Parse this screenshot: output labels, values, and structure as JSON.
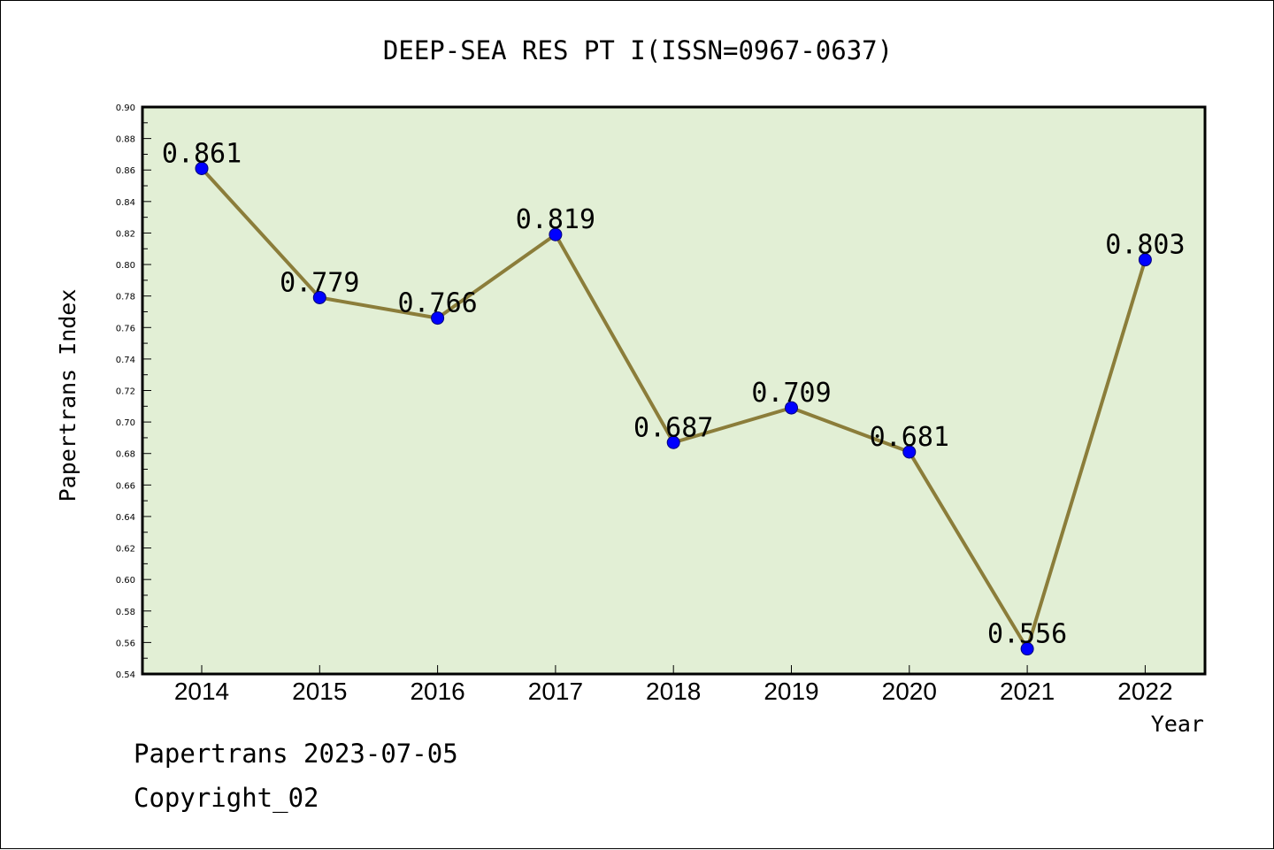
{
  "chart_data": {
    "type": "line",
    "title": "DEEP-SEA RES PT I(ISSN=0967-0637)",
    "xlabel": "Year",
    "ylabel": "Papertrans Index",
    "categories": [
      "2014",
      "2015",
      "2016",
      "2017",
      "2018",
      "2019",
      "2020",
      "2021",
      "2022"
    ],
    "values": [
      0.861,
      0.779,
      0.766,
      0.819,
      0.687,
      0.709,
      0.681,
      0.556,
      0.803
    ],
    "data_labels": [
      "0.861",
      "0.779",
      "0.766",
      "0.819",
      "0.687",
      "0.709",
      "0.681",
      "0.556",
      "0.803"
    ],
    "ylim": [
      0.54,
      0.9
    ],
    "yticks": [
      "0.54",
      "0.56",
      "0.58",
      "0.60",
      "0.62",
      "0.64",
      "0.66",
      "0.68",
      "0.70",
      "0.72",
      "0.74",
      "0.76",
      "0.78",
      "0.80",
      "0.82",
      "0.84",
      "0.86",
      "0.88",
      "0.90"
    ],
    "grid": false,
    "plot_background": "#e2efd5",
    "line_color": "#8b7d3a",
    "marker_color": "#0000ff"
  },
  "footer": {
    "date_text": "Papertrans 2023-07-05",
    "copyright_text": "Copyright_02"
  }
}
